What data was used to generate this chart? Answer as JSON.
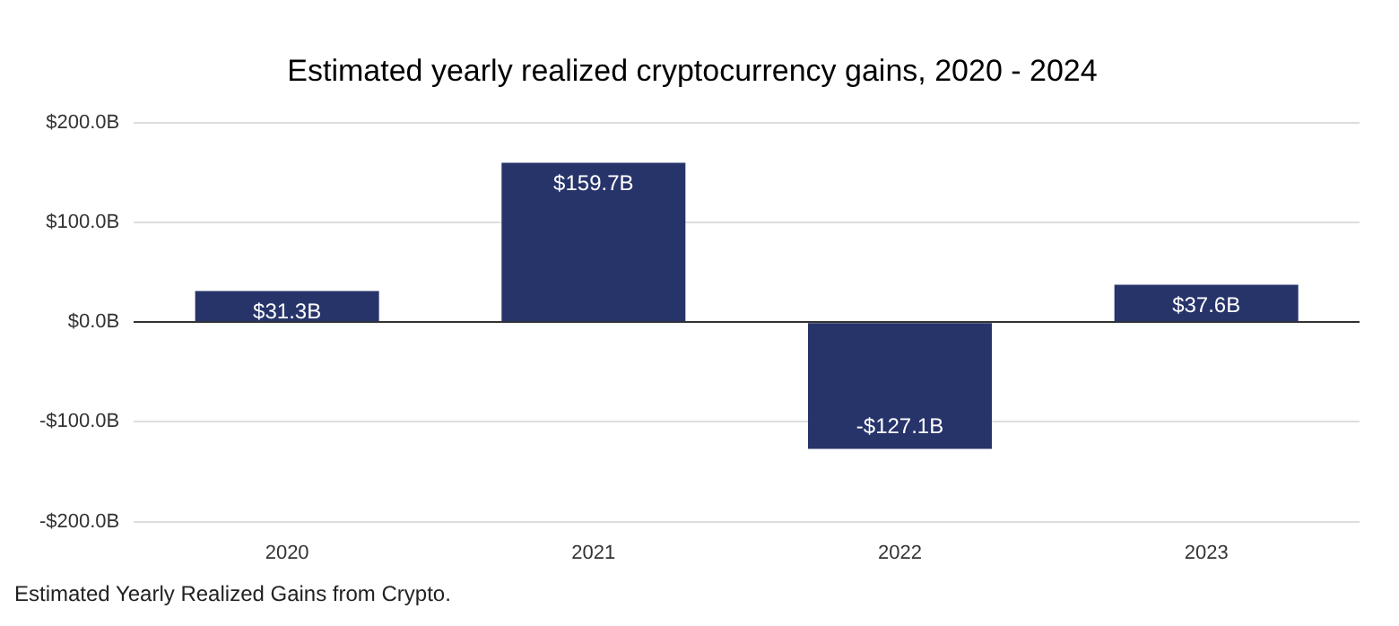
{
  "chart_data": {
    "type": "bar",
    "title": "Estimated yearly realized cryptocurrency gains, 2020 - 2024",
    "categories": [
      "2020",
      "2021",
      "2022",
      "2023"
    ],
    "values": [
      31.3,
      159.7,
      -127.1,
      37.6
    ],
    "value_labels": [
      "$31.3B",
      "$159.7B",
      "-$127.1B",
      "$37.6B"
    ],
    "color": "#27346a",
    "ylim": [
      -200,
      200
    ],
    "yticks": [
      {
        "value": -200,
        "label": "-$200.0B"
      },
      {
        "value": -100,
        "label": "-$100.0B"
      },
      {
        "value": 0,
        "label": "$0.0B"
      },
      {
        "value": 100,
        "label": "$100.0B"
      },
      {
        "value": 200,
        "label": "$200.0B"
      }
    ],
    "grid": "y",
    "annotations": [
      "Estimated Yearly Realized Gains from Crypto."
    ]
  }
}
